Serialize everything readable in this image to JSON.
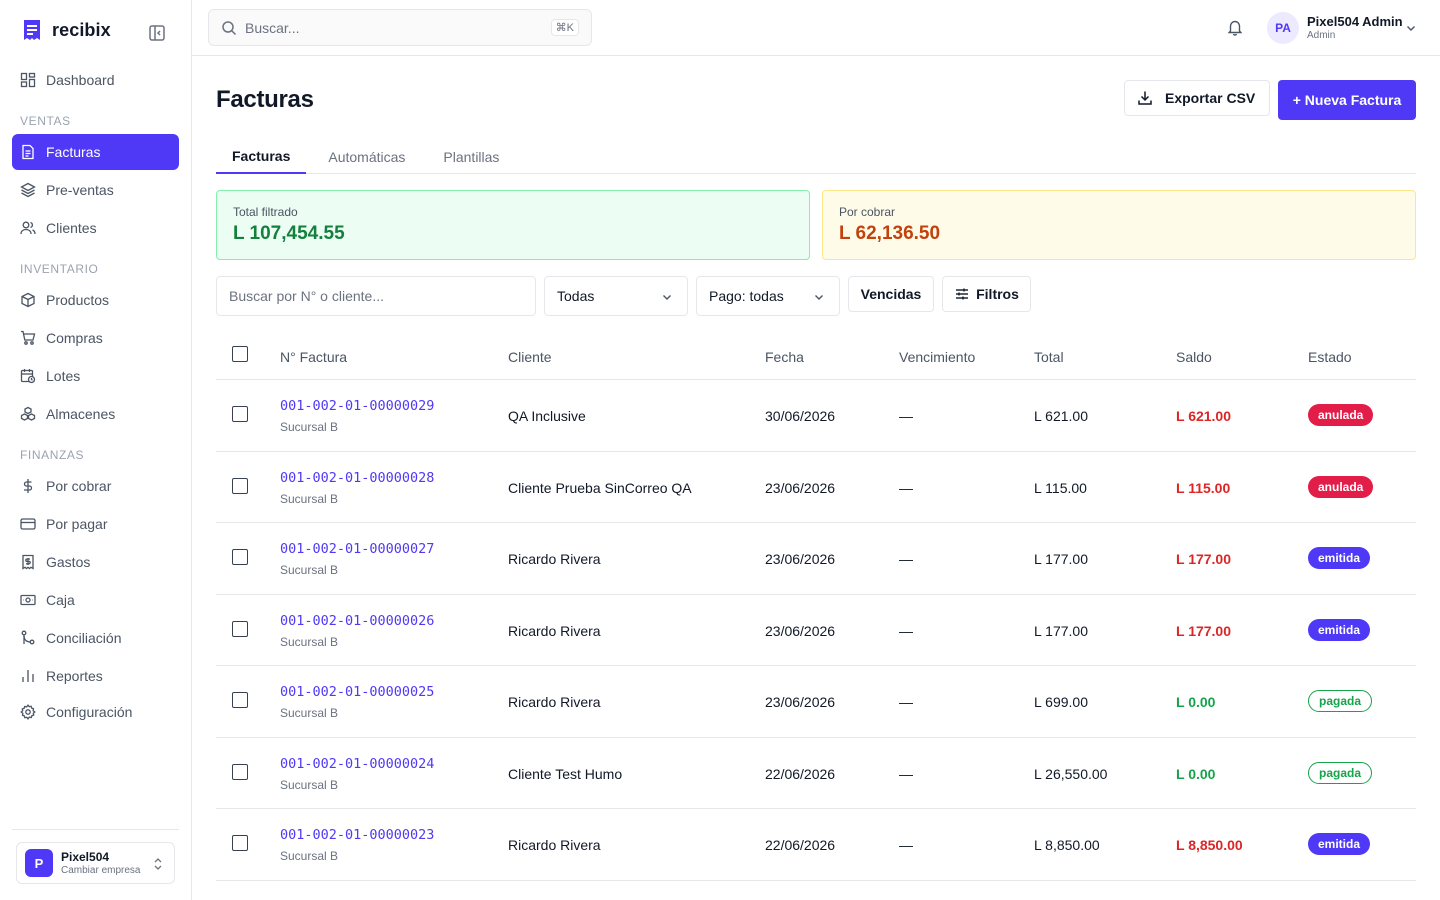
{
  "brand": {
    "name": "recibix"
  },
  "sidebar": {
    "sections": {
      "ventas": "VENTAS",
      "inventario": "INVENTARIO",
      "finanzas": "FINANZAS"
    },
    "items": {
      "dashboard": "Dashboard",
      "facturas": "Facturas",
      "preventas": "Pre-ventas",
      "clientes": "Clientes",
      "productos": "Productos",
      "compras": "Compras",
      "lotes": "Lotes",
      "almacenes": "Almacenes",
      "por_cobrar": "Por cobrar",
      "por_pagar": "Por pagar",
      "gastos": "Gastos",
      "caja": "Caja",
      "conciliacion": "Conciliación",
      "reportes": "Reportes",
      "configuracion": "Configuración"
    },
    "active": "facturas",
    "company": {
      "initial": "P",
      "name": "Pixel504",
      "action": "Cambiar empresa"
    }
  },
  "topbar": {
    "search_placeholder": "Buscar...",
    "shortcut": "⌘K",
    "user": {
      "initials": "PA",
      "name": "Pixel504 Admin",
      "role": "Admin"
    }
  },
  "page": {
    "title": "Facturas",
    "export_label": "Exportar CSV",
    "new_label": "+ Nueva Factura",
    "tabs": [
      "Facturas",
      "Automáticas",
      "Plantillas"
    ],
    "active_tab": "Facturas"
  },
  "summary": {
    "total_label": "Total filtrado",
    "total_value": "L 107,454.55",
    "pending_label": "Por cobrar",
    "pending_value": "L 62,136.50"
  },
  "filters": {
    "search_placeholder": "Buscar por N° o cliente...",
    "status_value": "Todas",
    "payment_value": "Pago: todas",
    "overdue_label": "Vencidas",
    "filters_label": "Filtros"
  },
  "table": {
    "headers": {
      "number": "N° Factura",
      "client": "Cliente",
      "date": "Fecha",
      "due": "Vencimiento",
      "total": "Total",
      "balance": "Saldo",
      "status": "Estado"
    },
    "rows": [
      {
        "number": "001-002-01-00000029",
        "branch": "Sucursal B",
        "client": "QA Inclusive",
        "date": "30/06/2026",
        "due": "—",
        "total": "L 621.00",
        "balance": "L 621.00",
        "balance_tone": "red",
        "status": "anulada"
      },
      {
        "number": "001-002-01-00000028",
        "branch": "Sucursal B",
        "client": "Cliente Prueba SinCorreo QA",
        "date": "23/06/2026",
        "due": "—",
        "total": "L 115.00",
        "balance": "L 115.00",
        "balance_tone": "red",
        "status": "anulada"
      },
      {
        "number": "001-002-01-00000027",
        "branch": "Sucursal B",
        "client": "Ricardo Rivera",
        "date": "23/06/2026",
        "due": "—",
        "total": "L 177.00",
        "balance": "L 177.00",
        "balance_tone": "red",
        "status": "emitida"
      },
      {
        "number": "001-002-01-00000026",
        "branch": "Sucursal B",
        "client": "Ricardo Rivera",
        "date": "23/06/2026",
        "due": "—",
        "total": "L 177.00",
        "balance": "L 177.00",
        "balance_tone": "red",
        "status": "emitida"
      },
      {
        "number": "001-002-01-00000025",
        "branch": "Sucursal B",
        "client": "Ricardo Rivera",
        "date": "23/06/2026",
        "due": "—",
        "total": "L 699.00",
        "balance": "L 0.00",
        "balance_tone": "green",
        "status": "pagada"
      },
      {
        "number": "001-002-01-00000024",
        "branch": "Sucursal B",
        "client": "Cliente Test Humo",
        "date": "22/06/2026",
        "due": "—",
        "total": "L 26,550.00",
        "balance": "L 0.00",
        "balance_tone": "green",
        "status": "pagada"
      },
      {
        "number": "001-002-01-00000023",
        "branch": "Sucursal B",
        "client": "Ricardo Rivera",
        "date": "22/06/2026",
        "due": "—",
        "total": "L 8,850.00",
        "balance": "L 8,850.00",
        "balance_tone": "red",
        "status": "emitida"
      }
    ]
  },
  "colors": {
    "accent": "#4f39f6",
    "danger": "#dc2626",
    "success": "#16a34a",
    "anulada": "#e11d48"
  }
}
